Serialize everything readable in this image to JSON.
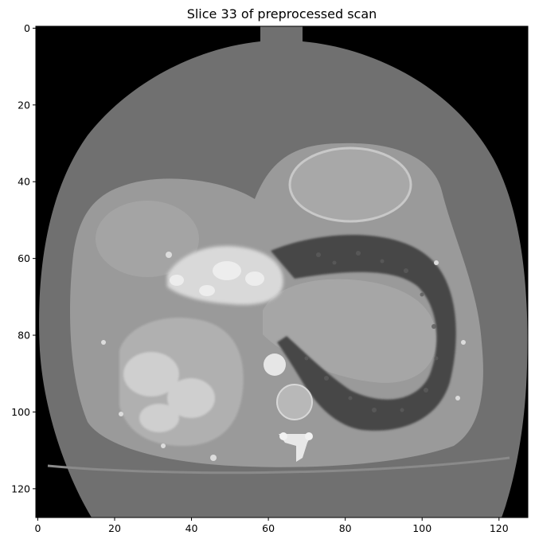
{
  "figure": {
    "title": "Slice 33 of preprocessed scan"
  },
  "chart_data": {
    "type": "heatmap",
    "colormap": "gray",
    "image_shape": [
      128,
      128
    ],
    "xlim": [
      -0.5,
      127.5
    ],
    "ylim": [
      127.5,
      -0.5
    ],
    "x_ticks": [
      0,
      20,
      40,
      60,
      80,
      100,
      120
    ],
    "y_ticks": [
      0,
      20,
      40,
      60,
      80,
      100,
      120
    ],
    "grid": false,
    "title": "Slice 33 of preprocessed scan"
  }
}
